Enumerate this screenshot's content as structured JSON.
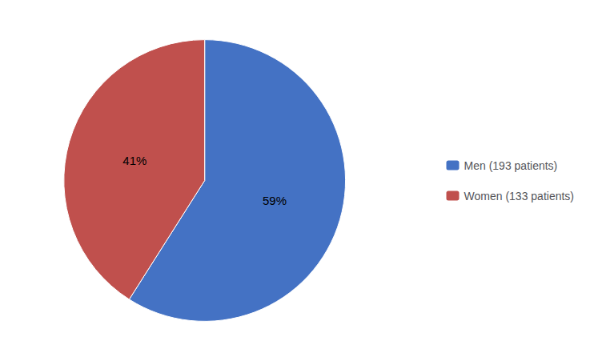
{
  "chart_data": {
    "type": "pie",
    "categories": [
      "Men (193 patients)",
      "Women (133 patients)"
    ],
    "values": [
      59,
      41
    ],
    "value_labels": [
      "59%",
      "41%"
    ],
    "colors": [
      "#4472C4",
      "#C0504D"
    ],
    "data_labels": true,
    "legend": "right"
  }
}
